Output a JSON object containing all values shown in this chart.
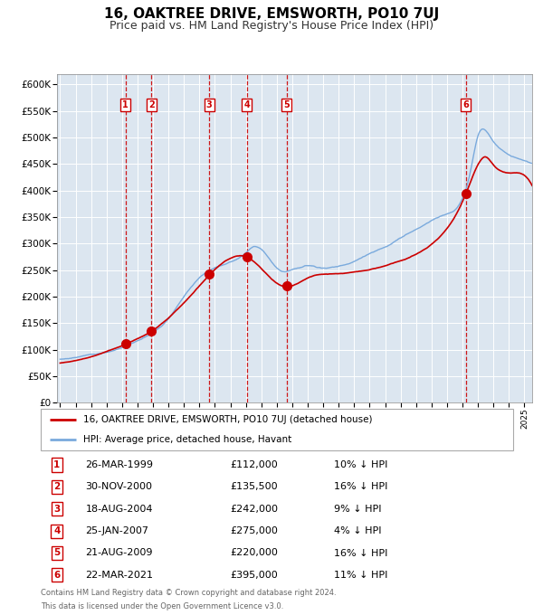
{
  "title": "16, OAKTREE DRIVE, EMSWORTH, PO10 7UJ",
  "subtitle": "Price paid vs. HM Land Registry's House Price Index (HPI)",
  "title_fontsize": 11,
  "subtitle_fontsize": 9,
  "background_color": "#ffffff",
  "plot_bg_color": "#dce6f0",
  "grid_color": "#ffffff",
  "hpi_color": "#7aaadd",
  "price_color": "#cc0000",
  "sale_marker_color": "#cc0000",
  "vline_color": "#cc0000",
  "sales": [
    {
      "num": 1,
      "date_label": "26-MAR-1999",
      "price": 112000,
      "pct": "10%",
      "year": 1999.23
    },
    {
      "num": 2,
      "date_label": "30-NOV-2000",
      "price": 135500,
      "pct": "16%",
      "year": 2000.91
    },
    {
      "num": 3,
      "date_label": "18-AUG-2004",
      "price": 242000,
      "pct": "9%",
      "year": 2004.63
    },
    {
      "num": 4,
      "date_label": "25-JAN-2007",
      "price": 275000,
      "pct": "4%",
      "year": 2007.07
    },
    {
      "num": 5,
      "date_label": "21-AUG-2009",
      "price": 220000,
      "pct": "16%",
      "year": 2009.64
    },
    {
      "num": 6,
      "date_label": "22-MAR-2021",
      "price": 395000,
      "pct": "11%",
      "year": 2021.22
    }
  ],
  "legend_label_price": "16, OAKTREE DRIVE, EMSWORTH, PO10 7UJ (detached house)",
  "legend_label_hpi": "HPI: Average price, detached house, Havant",
  "footnote1": "Contains HM Land Registry data © Crown copyright and database right 2024.",
  "footnote2": "This data is licensed under the Open Government Licence v3.0.",
  "ylim": [
    0,
    620000
  ],
  "yticks": [
    0,
    50000,
    100000,
    150000,
    200000,
    250000,
    300000,
    350000,
    400000,
    450000,
    500000,
    550000,
    600000
  ],
  "xlim_start": 1994.8,
  "xlim_end": 2025.5,
  "hpi_anchors_x": [
    1995.0,
    1996.0,
    1997.0,
    1998.0,
    1999.0,
    2000.0,
    2001.0,
    2002.0,
    2003.0,
    2004.0,
    2005.0,
    2006.0,
    2007.0,
    2007.5,
    2008.0,
    2008.5,
    2009.0,
    2009.5,
    2010.0,
    2010.5,
    2011.0,
    2012.0,
    2013.0,
    2014.0,
    2015.0,
    2016.0,
    2017.0,
    2018.0,
    2019.0,
    2020.0,
    2021.0,
    2021.5,
    2022.0,
    2022.5,
    2023.0,
    2023.5,
    2024.0,
    2024.5,
    2025.0,
    2025.5
  ],
  "hpi_anchors_y": [
    82000,
    86000,
    91000,
    96000,
    105000,
    118000,
    135000,
    162000,
    205000,
    240000,
    258000,
    270000,
    288000,
    300000,
    295000,
    278000,
    260000,
    252000,
    255000,
    258000,
    262000,
    258000,
    262000,
    270000,
    285000,
    298000,
    315000,
    330000,
    348000,
    360000,
    390000,
    440000,
    510000,
    520000,
    500000,
    485000,
    475000,
    470000,
    465000,
    460000
  ],
  "price_anchors_x": [
    1995.0,
    1997.5,
    1999.23,
    2000.91,
    2002.5,
    2004.63,
    2007.07,
    2009.64,
    2011.0,
    2013.0,
    2015.0,
    2017.0,
    2019.0,
    2021.22,
    2022.0,
    2022.5,
    2023.0,
    2024.0,
    2024.5,
    2025.0
  ],
  "price_anchors_y": [
    75000,
    92000,
    112000,
    135500,
    175000,
    242000,
    275000,
    220000,
    238000,
    245000,
    252000,
    268000,
    300000,
    395000,
    450000,
    465000,
    450000,
    435000,
    435000,
    430000
  ]
}
